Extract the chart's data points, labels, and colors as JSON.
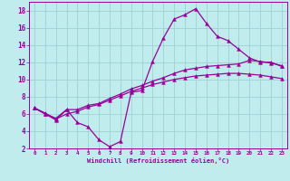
{
  "xlabel": "Windchill (Refroidissement éolien,°C)",
  "bg_color": "#c0ecee",
  "line_color": "#990099",
  "grid_color": "#99cccc",
  "xlim": [
    -0.5,
    23.5
  ],
  "ylim": [
    2,
    19
  ],
  "xticks": [
    0,
    1,
    2,
    3,
    4,
    5,
    6,
    7,
    8,
    9,
    10,
    11,
    12,
    13,
    14,
    15,
    16,
    17,
    18,
    19,
    20,
    21,
    22,
    23
  ],
  "yticks": [
    2,
    4,
    6,
    8,
    10,
    12,
    14,
    16,
    18
  ],
  "curve1_x": [
    0,
    1,
    2,
    3,
    4,
    5,
    6,
    7,
    8,
    9,
    10,
    11,
    12,
    13,
    14,
    15,
    16,
    17,
    18,
    19,
    20,
    21,
    22,
    23
  ],
  "curve1_y": [
    6.7,
    6.0,
    5.3,
    6.5,
    5.0,
    4.5,
    3.0,
    2.2,
    2.8,
    8.5,
    8.7,
    12.1,
    14.8,
    17.0,
    17.5,
    18.2,
    16.5,
    15.0,
    14.5,
    13.5,
    12.5,
    12.0,
    12.0,
    11.5
  ],
  "curve2_x": [
    0,
    1,
    2,
    3,
    4,
    5,
    6,
    7,
    8,
    9,
    10,
    11,
    12,
    13,
    14,
    15,
    16,
    17,
    18,
    19,
    20,
    21,
    22,
    23
  ],
  "curve2_y": [
    6.7,
    6.0,
    5.5,
    6.5,
    6.5,
    7.0,
    7.2,
    7.8,
    8.3,
    8.9,
    9.3,
    9.8,
    10.2,
    10.7,
    11.1,
    11.3,
    11.5,
    11.6,
    11.7,
    11.8,
    12.2,
    12.1,
    11.9,
    11.6
  ],
  "curve3_x": [
    0,
    1,
    2,
    3,
    4,
    5,
    6,
    7,
    8,
    9,
    10,
    11,
    12,
    13,
    14,
    15,
    16,
    17,
    18,
    19,
    20,
    21,
    22,
    23
  ],
  "curve3_y": [
    6.7,
    6.1,
    5.4,
    6.0,
    6.3,
    6.8,
    7.1,
    7.6,
    8.1,
    8.6,
    9.0,
    9.4,
    9.7,
    10.0,
    10.2,
    10.4,
    10.5,
    10.6,
    10.7,
    10.7,
    10.6,
    10.5,
    10.3,
    10.1
  ]
}
